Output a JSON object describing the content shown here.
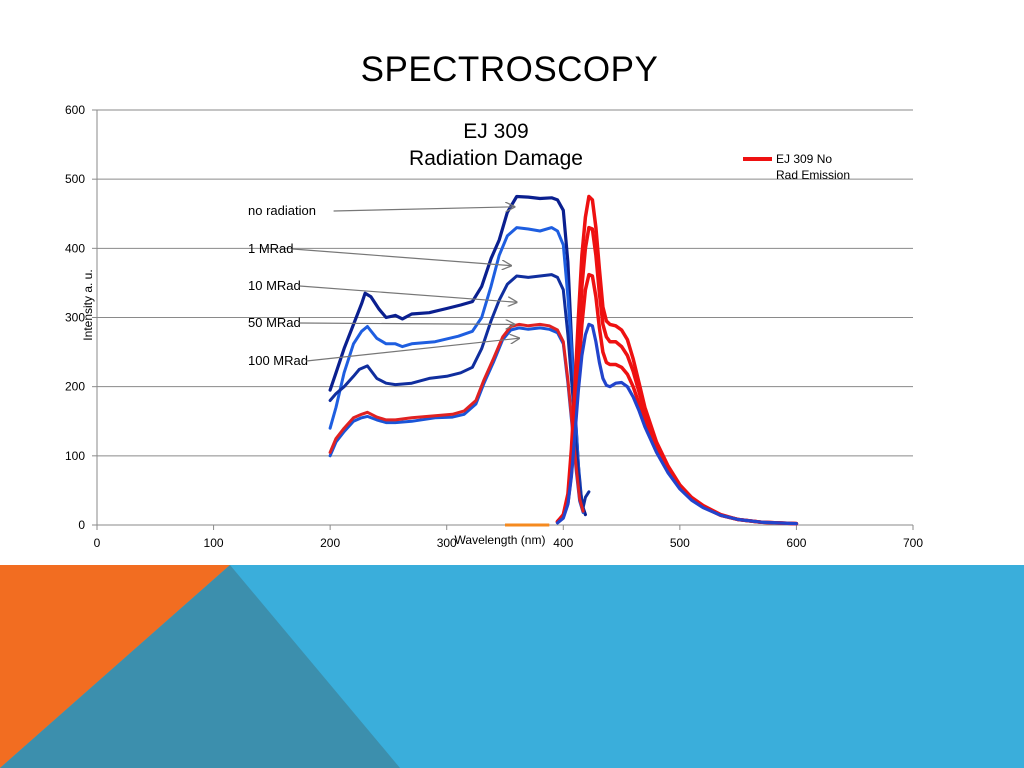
{
  "slide": {
    "title": "SPECTROSCOPY",
    "colors": {
      "orange": "#f26d21",
      "blue": "#3aaedb",
      "teal": "#3c8fad"
    }
  },
  "chart_data": {
    "type": "line",
    "title_line1": "EJ 309",
    "title_line2": "Radiation Damage",
    "xlabel": "Wavelength (nm)",
    "ylabel": "Intensity a. u.",
    "xlim": [
      0,
      700
    ],
    "ylim": [
      0,
      600
    ],
    "xticks": [
      0,
      100,
      200,
      300,
      400,
      500,
      600,
      700
    ],
    "yticks": [
      0,
      100,
      200,
      300,
      400,
      500,
      600
    ],
    "grid": true,
    "legend": {
      "position": "top-right",
      "label": "EJ 309 No Rad Emission",
      "color": "#ee1111"
    },
    "annotations": [
      {
        "text": "no radiation",
        "target": [
          358,
          460
        ]
      },
      {
        "text": "1 MRad",
        "target": [
          355,
          375
        ]
      },
      {
        "text": "10 MRad",
        "target": [
          360,
          322
        ]
      },
      {
        "text": "50 MRad",
        "target": [
          358,
          290
        ]
      },
      {
        "text": "100 MRad",
        "target": [
          362,
          270
        ]
      }
    ],
    "absorption_series": [
      {
        "color": "#0a1f8f",
        "width": 3.2,
        "points": [
          [
            200,
            195
          ],
          [
            205,
            220
          ],
          [
            212,
            255
          ],
          [
            220,
            290
          ],
          [
            227,
            320
          ],
          [
            230,
            335
          ],
          [
            235,
            330
          ],
          [
            242,
            312
          ],
          [
            248,
            300
          ],
          [
            256,
            303
          ],
          [
            262,
            298
          ],
          [
            270,
            305
          ],
          [
            285,
            307
          ],
          [
            300,
            313
          ],
          [
            312,
            318
          ],
          [
            322,
            323
          ],
          [
            330,
            345
          ],
          [
            338,
            385
          ],
          [
            345,
            412
          ],
          [
            352,
            452
          ],
          [
            360,
            475
          ],
          [
            370,
            474
          ],
          [
            380,
            472
          ],
          [
            390,
            473
          ],
          [
            395,
            470
          ],
          [
            400,
            455
          ],
          [
            404,
            380
          ],
          [
            407,
            270
          ],
          [
            410,
            170
          ],
          [
            413,
            85
          ],
          [
            416,
            30
          ],
          [
            419,
            15
          ]
        ]
      },
      {
        "color": "#1e5ee0",
        "width": 3,
        "points": [
          [
            200,
            140
          ],
          [
            205,
            170
          ],
          [
            212,
            220
          ],
          [
            220,
            262
          ],
          [
            227,
            280
          ],
          [
            232,
            287
          ],
          [
            240,
            270
          ],
          [
            248,
            262
          ],
          [
            256,
            262
          ],
          [
            262,
            258
          ],
          [
            270,
            262
          ],
          [
            290,
            265
          ],
          [
            310,
            273
          ],
          [
            322,
            280
          ],
          [
            330,
            300
          ],
          [
            338,
            345
          ],
          [
            345,
            390
          ],
          [
            352,
            418
          ],
          [
            360,
            430
          ],
          [
            370,
            428
          ],
          [
            380,
            425
          ],
          [
            390,
            430
          ],
          [
            395,
            425
          ],
          [
            400,
            405
          ],
          [
            404,
            330
          ],
          [
            408,
            230
          ],
          [
            411,
            140
          ],
          [
            414,
            60
          ],
          [
            417,
            20
          ]
        ]
      },
      {
        "color": "#102e9e",
        "width": 3,
        "points": [
          [
            200,
            180
          ],
          [
            205,
            190
          ],
          [
            212,
            200
          ],
          [
            220,
            215
          ],
          [
            225,
            225
          ],
          [
            232,
            230
          ],
          [
            240,
            212
          ],
          [
            248,
            205
          ],
          [
            256,
            203
          ],
          [
            270,
            205
          ],
          [
            285,
            212
          ],
          [
            300,
            215
          ],
          [
            312,
            220
          ],
          [
            322,
            228
          ],
          [
            330,
            255
          ],
          [
            338,
            295
          ],
          [
            345,
            325
          ],
          [
            352,
            348
          ],
          [
            360,
            360
          ],
          [
            370,
            358
          ],
          [
            380,
            360
          ],
          [
            390,
            362
          ],
          [
            395,
            358
          ],
          [
            400,
            340
          ],
          [
            404,
            275
          ],
          [
            408,
            190
          ],
          [
            411,
            115
          ],
          [
            414,
            55
          ],
          [
            417,
            25
          ],
          [
            419,
            40
          ],
          [
            422,
            48
          ]
        ]
      },
      {
        "color": "#1a55d8",
        "width": 3,
        "points": [
          [
            200,
            100
          ],
          [
            205,
            120
          ],
          [
            212,
            135
          ],
          [
            220,
            150
          ],
          [
            227,
            155
          ],
          [
            232,
            157
          ],
          [
            240,
            152
          ],
          [
            248,
            148
          ],
          [
            256,
            148
          ],
          [
            270,
            150
          ],
          [
            290,
            155
          ],
          [
            305,
            156
          ],
          [
            315,
            160
          ],
          [
            325,
            175
          ],
          [
            332,
            205
          ],
          [
            340,
            235
          ],
          [
            348,
            268
          ],
          [
            355,
            282
          ],
          [
            362,
            285
          ],
          [
            370,
            283
          ],
          [
            380,
            285
          ],
          [
            388,
            283
          ],
          [
            395,
            278
          ],
          [
            400,
            262
          ],
          [
            404,
            205
          ],
          [
            408,
            135
          ],
          [
            411,
            80
          ],
          [
            414,
            35
          ],
          [
            417,
            18
          ]
        ]
      },
      {
        "color": "#e02222",
        "width": 3,
        "points": [
          [
            200,
            105
          ],
          [
            205,
            125
          ],
          [
            212,
            140
          ],
          [
            220,
            155
          ],
          [
            227,
            160
          ],
          [
            232,
            163
          ],
          [
            240,
            156
          ],
          [
            248,
            152
          ],
          [
            256,
            152
          ],
          [
            270,
            155
          ],
          [
            290,
            158
          ],
          [
            305,
            160
          ],
          [
            315,
            165
          ],
          [
            325,
            180
          ],
          [
            332,
            210
          ],
          [
            340,
            240
          ],
          [
            348,
            272
          ],
          [
            355,
            287
          ],
          [
            362,
            290
          ],
          [
            370,
            288
          ],
          [
            380,
            290
          ],
          [
            388,
            288
          ],
          [
            395,
            282
          ],
          [
            400,
            265
          ],
          [
            404,
            210
          ],
          [
            408,
            140
          ],
          [
            411,
            85
          ],
          [
            414,
            38
          ],
          [
            417,
            20
          ]
        ]
      }
    ],
    "emission_series": [
      {
        "color": "#ee1111",
        "width": 3.5,
        "points": [
          [
            395,
            5
          ],
          [
            400,
            15
          ],
          [
            404,
            45
          ],
          [
            407,
            110
          ],
          [
            410,
            200
          ],
          [
            413,
            300
          ],
          [
            416,
            390
          ],
          [
            419,
            445
          ],
          [
            422,
            475
          ],
          [
            425,
            470
          ],
          [
            428,
            430
          ],
          [
            431,
            370
          ],
          [
            434,
            315
          ],
          [
            437,
            295
          ],
          [
            440,
            290
          ],
          [
            445,
            288
          ],
          [
            450,
            282
          ],
          [
            455,
            268
          ],
          [
            460,
            240
          ],
          [
            465,
            205
          ],
          [
            470,
            170
          ],
          [
            480,
            120
          ],
          [
            490,
            85
          ],
          [
            500,
            58
          ],
          [
            510,
            40
          ],
          [
            520,
            28
          ],
          [
            535,
            15
          ],
          [
            550,
            8
          ],
          [
            570,
            4
          ],
          [
            600,
            2
          ]
        ]
      },
      {
        "color": "#ee1111",
        "width": 3.5,
        "points": [
          [
            395,
            5
          ],
          [
            400,
            14
          ],
          [
            404,
            40
          ],
          [
            407,
            95
          ],
          [
            410,
            175
          ],
          [
            413,
            260
          ],
          [
            416,
            345
          ],
          [
            419,
            400
          ],
          [
            422,
            430
          ],
          [
            425,
            428
          ],
          [
            428,
            390
          ],
          [
            431,
            335
          ],
          [
            434,
            290
          ],
          [
            437,
            272
          ],
          [
            440,
            265
          ],
          [
            445,
            265
          ],
          [
            450,
            258
          ],
          [
            455,
            245
          ],
          [
            460,
            222
          ],
          [
            465,
            192
          ],
          [
            470,
            162
          ],
          [
            480,
            115
          ],
          [
            490,
            82
          ],
          [
            500,
            56
          ],
          [
            510,
            38
          ],
          [
            520,
            27
          ],
          [
            535,
            14
          ],
          [
            550,
            8
          ],
          [
            570,
            4
          ],
          [
            600,
            2
          ]
        ]
      },
      {
        "color": "#ee1111",
        "width": 3.5,
        "points": [
          [
            395,
            4
          ],
          [
            400,
            12
          ],
          [
            404,
            32
          ],
          [
            407,
            75
          ],
          [
            410,
            140
          ],
          [
            413,
            215
          ],
          [
            416,
            290
          ],
          [
            419,
            340
          ],
          [
            422,
            362
          ],
          [
            425,
            360
          ],
          [
            428,
            330
          ],
          [
            431,
            285
          ],
          [
            434,
            250
          ],
          [
            437,
            235
          ],
          [
            440,
            232
          ],
          [
            445,
            232
          ],
          [
            450,
            228
          ],
          [
            455,
            218
          ],
          [
            460,
            200
          ],
          [
            465,
            175
          ],
          [
            470,
            150
          ],
          [
            480,
            110
          ],
          [
            490,
            78
          ],
          [
            500,
            54
          ],
          [
            510,
            37
          ],
          [
            520,
            26
          ],
          [
            535,
            14
          ],
          [
            550,
            8
          ],
          [
            570,
            4
          ],
          [
            600,
            2
          ]
        ]
      },
      {
        "color": "#2244cc",
        "width": 3.2,
        "points": [
          [
            395,
            3
          ],
          [
            400,
            10
          ],
          [
            404,
            30
          ],
          [
            407,
            70
          ],
          [
            410,
            130
          ],
          [
            413,
            195
          ],
          [
            416,
            245
          ],
          [
            419,
            275
          ],
          [
            422,
            290
          ],
          [
            425,
            288
          ],
          [
            428,
            265
          ],
          [
            431,
            235
          ],
          [
            434,
            212
          ],
          [
            437,
            202
          ],
          [
            440,
            200
          ],
          [
            445,
            205
          ],
          [
            450,
            206
          ],
          [
            455,
            200
          ],
          [
            460,
            185
          ],
          [
            465,
            165
          ],
          [
            470,
            142
          ],
          [
            480,
            105
          ],
          [
            490,
            75
          ],
          [
            500,
            52
          ],
          [
            510,
            36
          ],
          [
            520,
            25
          ],
          [
            535,
            14
          ],
          [
            550,
            8
          ],
          [
            570,
            4
          ],
          [
            600,
            2
          ]
        ]
      }
    ],
    "excitation_marker": {
      "color": "#f58a1f",
      "points": [
        [
          350,
          0
        ],
        [
          388,
          0
        ]
      ]
    }
  }
}
